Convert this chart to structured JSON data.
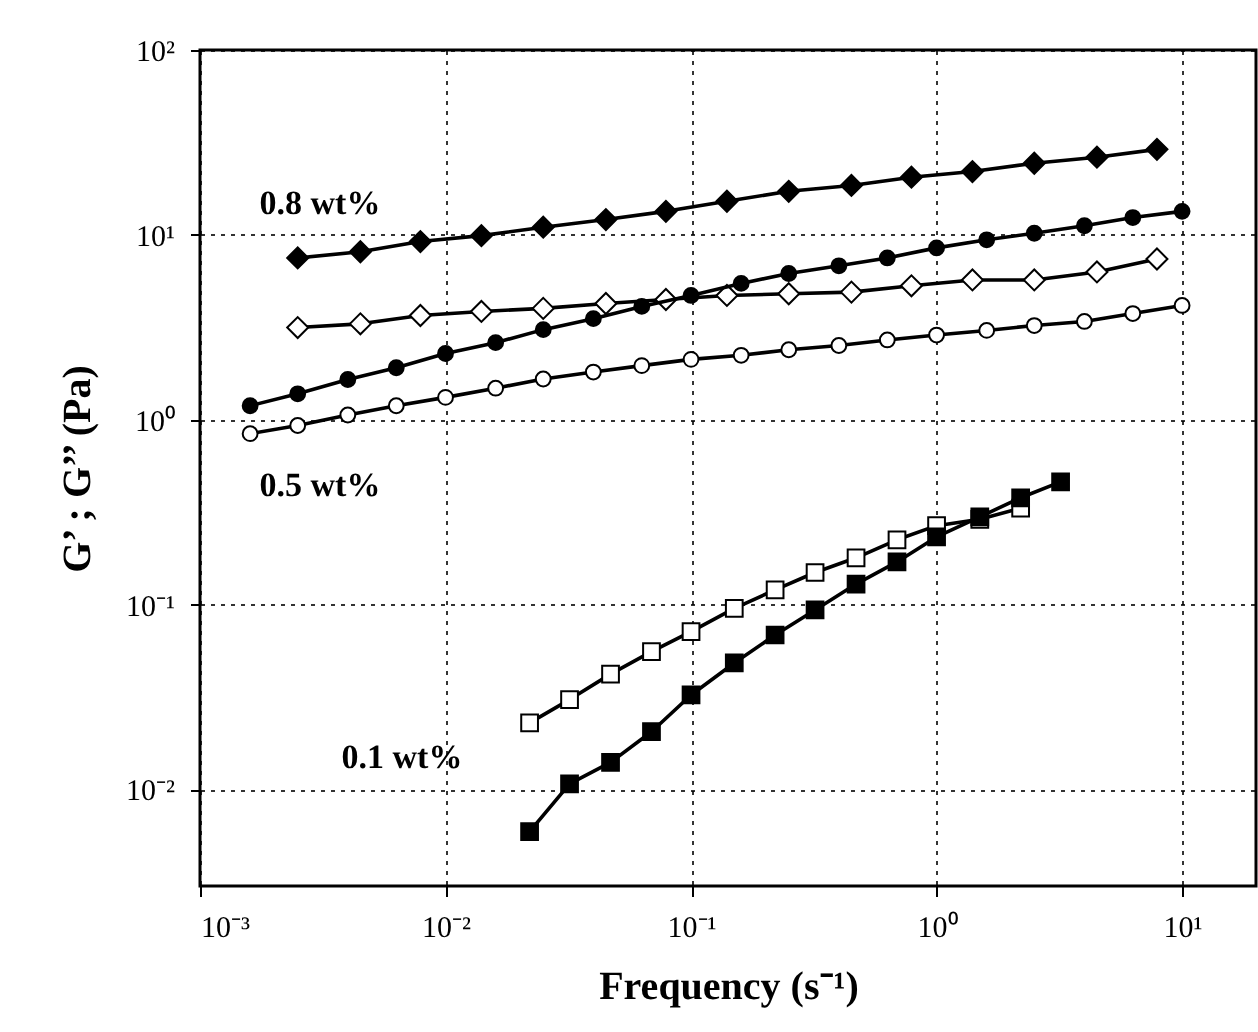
{
  "chart_data": {
    "type": "line",
    "xlabel": "Frequency (s⁻¹)",
    "ylabel": "G’ ; G’’  (Pa)",
    "log": "xy",
    "grid": true,
    "line_style": "solid",
    "xlim": [
      0.001,
      20
    ],
    "ylim": [
      0.003,
      100
    ],
    "xticks": [
      {
        "value": 0.001,
        "label": "10⁻³"
      },
      {
        "value": 0.01,
        "label": "10⁻²"
      },
      {
        "value": 0.1,
        "label": "10⁻¹"
      },
      {
        "value": 1,
        "label": "10⁰"
      },
      {
        "value": 10,
        "label": "10¹"
      }
    ],
    "yticks": [
      {
        "value": 0.01,
        "label": "10⁻²"
      },
      {
        "value": 0.1,
        "label": "10⁻¹"
      },
      {
        "value": 1,
        "label": "10⁰"
      },
      {
        "value": 10,
        "label": "10¹"
      },
      {
        "value": 100,
        "label": "10²"
      }
    ],
    "annotations": [
      "0.8 wt%",
      "0.5 wt%",
      "0.1 wt%"
    ],
    "series": [
      {
        "color": "#000000",
        "marker": "diamond",
        "x": [
          0.0025,
          0.0045,
          0.0079,
          0.014,
          0.025,
          0.045,
          0.079,
          0.14,
          0.25,
          0.45,
          0.79,
          1.4,
          2.5,
          4.5,
          7.9
        ],
        "values": [
          7.5,
          8.1,
          9.2,
          9.9,
          11,
          12.1,
          13.4,
          15.2,
          17.2,
          18.5,
          20.5,
          22,
          24.4,
          26.3,
          29
        ]
      },
      {
        "color": "#000000",
        "marker": "diamond",
        "x": [
          0.0025,
          0.0045,
          0.0079,
          0.014,
          0.025,
          0.045,
          0.079,
          0.14,
          0.25,
          0.45,
          0.79,
          1.4,
          2.5,
          4.5,
          7.9
        ],
        "values": [
          3.15,
          3.3,
          3.66,
          3.85,
          4.0,
          4.25,
          4.47,
          4.7,
          4.8,
          4.9,
          5.3,
          5.7,
          5.7,
          6.3,
          7.4
        ]
      },
      {
        "color": "#000000",
        "marker": "circle",
        "x": [
          0.0016,
          0.0025,
          0.004,
          0.0063,
          0.01,
          0.016,
          0.025,
          0.04,
          0.063,
          0.1,
          0.16,
          0.25,
          0.4,
          0.63,
          1,
          1.6,
          2.5,
          4,
          6.3,
          10
        ],
        "values": [
          1.19,
          1.38,
          1.65,
          1.91,
          2.28,
          2.61,
          3.07,
          3.52,
          4.1,
          4.7,
          5.46,
          6.18,
          6.8,
          7.5,
          8.5,
          9.4,
          10.2,
          11.2,
          12.4,
          13.4
        ]
      },
      {
        "color": "#000000",
        "marker": "circle",
        "x": [
          0.0016,
          0.0025,
          0.004,
          0.0063,
          0.01,
          0.016,
          0.025,
          0.04,
          0.063,
          0.1,
          0.16,
          0.25,
          0.4,
          0.63,
          1,
          1.6,
          2.5,
          4,
          6.3,
          10
        ],
        "values": [
          0.84,
          0.93,
          1.06,
          1.19,
          1.32,
          1.48,
          1.66,
          1.81,
          1.96,
          2.12,
          2.23,
          2.39,
          2.52,
          2.7,
          2.87,
          3.04,
          3.23,
          3.4,
          3.75,
          4.15
        ]
      },
      {
        "color": "#000000",
        "marker": "square",
        "x": [
          0.022,
          0.032,
          0.047,
          0.069,
          0.1,
          0.15,
          0.22,
          0.32,
          0.47,
          0.69,
          1,
          1.5,
          2.2
        ],
        "values": [
          0.0229,
          0.0306,
          0.042,
          0.0556,
          0.0714,
          0.0953,
          0.12,
          0.149,
          0.179,
          0.224,
          0.267,
          0.289,
          0.332
        ]
      },
      {
        "color": "#000000",
        "marker": "square",
        "x": [
          0.022,
          0.032,
          0.047,
          0.069,
          0.1,
          0.15,
          0.22,
          0.32,
          0.47,
          0.69,
          1,
          1.5,
          2.2,
          3.2
        ],
        "values": [
          0.0059,
          0.0107,
          0.014,
          0.0205,
          0.0324,
          0.0483,
          0.0684,
          0.0935,
          0.129,
          0.17,
          0.232,
          0.298,
          0.378,
          0.461
        ]
      }
    ]
  }
}
